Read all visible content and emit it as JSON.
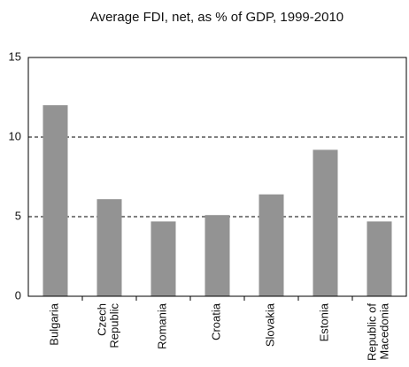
{
  "chart_data": {
    "type": "bar",
    "title": "Average FDI, net, as % of GDP, 1999-2010",
    "categories": [
      "Bulgaria",
      "Czech Republic",
      "Romania",
      "Croatia",
      "Slovakia",
      "Estonia",
      "Republic of Macedonia"
    ],
    "values": [
      12.0,
      6.1,
      4.7,
      5.1,
      6.4,
      9.2,
      4.7
    ],
    "color": "#939393",
    "ylim": [
      0,
      15
    ],
    "yticks": [
      0,
      5,
      10,
      15
    ],
    "grid": true
  }
}
